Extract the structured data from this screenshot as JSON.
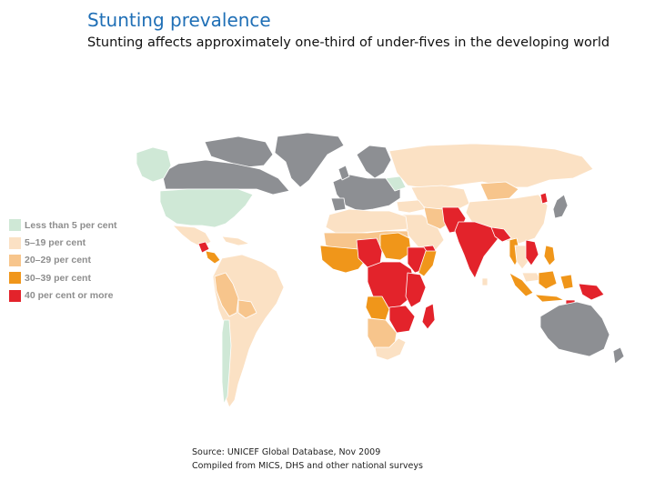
{
  "title": "Stunting prevalence",
  "subtitle": "Stunting affects approximately one-third of under-fives in the developing world",
  "legend": [
    {
      "label": "Less than 5 per cent",
      "color": "#cfe8d6"
    },
    {
      "label": "5–19 per cent",
      "color": "#fbe1c4"
    },
    {
      "label": "20–29 per cent",
      "color": "#f7c58c"
    },
    {
      "label": "30–39 per cent",
      "color": "#f0961a"
    },
    {
      "label": "40 per cent or more",
      "color": "#e3232b"
    }
  ],
  "no_data_color": "#8d8f93",
  "source": {
    "line1": "Source: UNICEF Global Database, Nov 2009",
    "line2": "Compiled from MICS, DHS and other national surveys"
  }
}
